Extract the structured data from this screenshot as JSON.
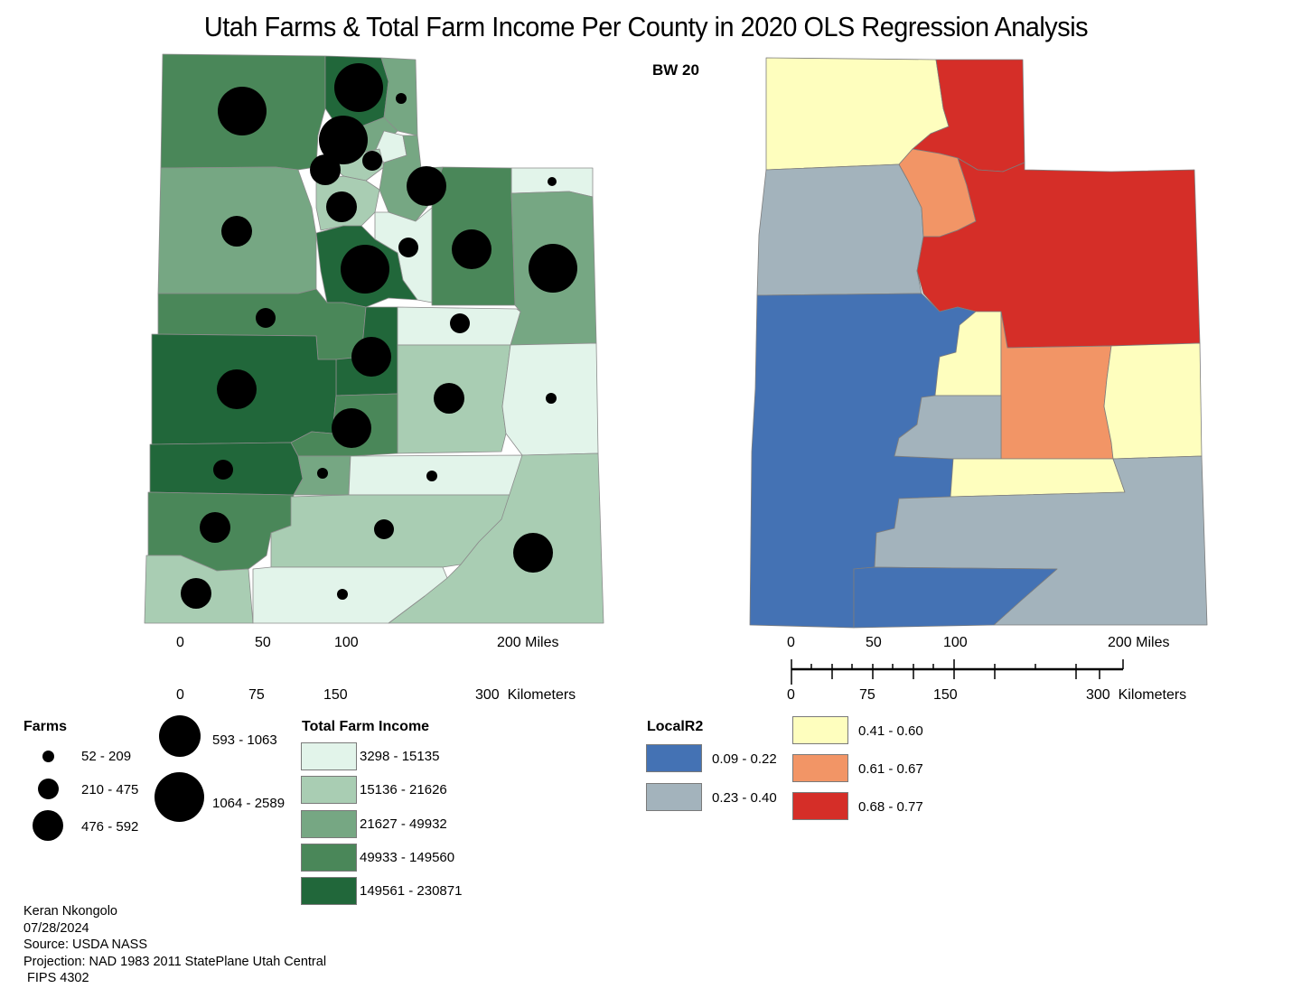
{
  "title": "Utah Farms & Total Farm Income Per County in 2020 OLS Regression Analysis",
  "subtitle": "BW 20",
  "scalebar": {
    "miles": [
      "0",
      "50",
      "100",
      "200 Miles"
    ],
    "km": [
      "0",
      "75",
      "150",
      "300  Kilometers"
    ]
  },
  "farms_legend": {
    "title": "Farms",
    "classes": [
      "52 - 209",
      "210 - 475",
      "476 - 592",
      "593 - 1063",
      "1064 - 2589"
    ]
  },
  "income_legend": {
    "title": "Total Farm Income",
    "classes": [
      {
        "label": "3298 - 15135",
        "color": "#e2f4ea"
      },
      {
        "label": "15136 - 21626",
        "color": "#a9cdb3"
      },
      {
        "label": "21627 - 49932",
        "color": "#76a783"
      },
      {
        "label": "49933 - 149560",
        "color": "#4a8759"
      },
      {
        "label": "149561 - 230871",
        "color": "#21673a"
      }
    ]
  },
  "r2_legend": {
    "title": "LocalR2",
    "classes": [
      {
        "label": "0.09 - 0.22",
        "color": "#4472b4"
      },
      {
        "label": "0.23 - 0.40",
        "color": "#a3b3bc"
      },
      {
        "label": "0.41 - 0.60",
        "color": "#fefebe"
      },
      {
        "label": "0.61 - 0.67",
        "color": "#f29566"
      },
      {
        "label": "0.68 - 0.77",
        "color": "#d52e28"
      }
    ]
  },
  "footer": {
    "author": "Keran Nkongolo",
    "date": "07/28/2024",
    "source": "Source: USDA NASS",
    "projection": "Projection: NAD 1983 2011 StatePlane Utah Central",
    "fips": " FIPS 4302"
  }
}
